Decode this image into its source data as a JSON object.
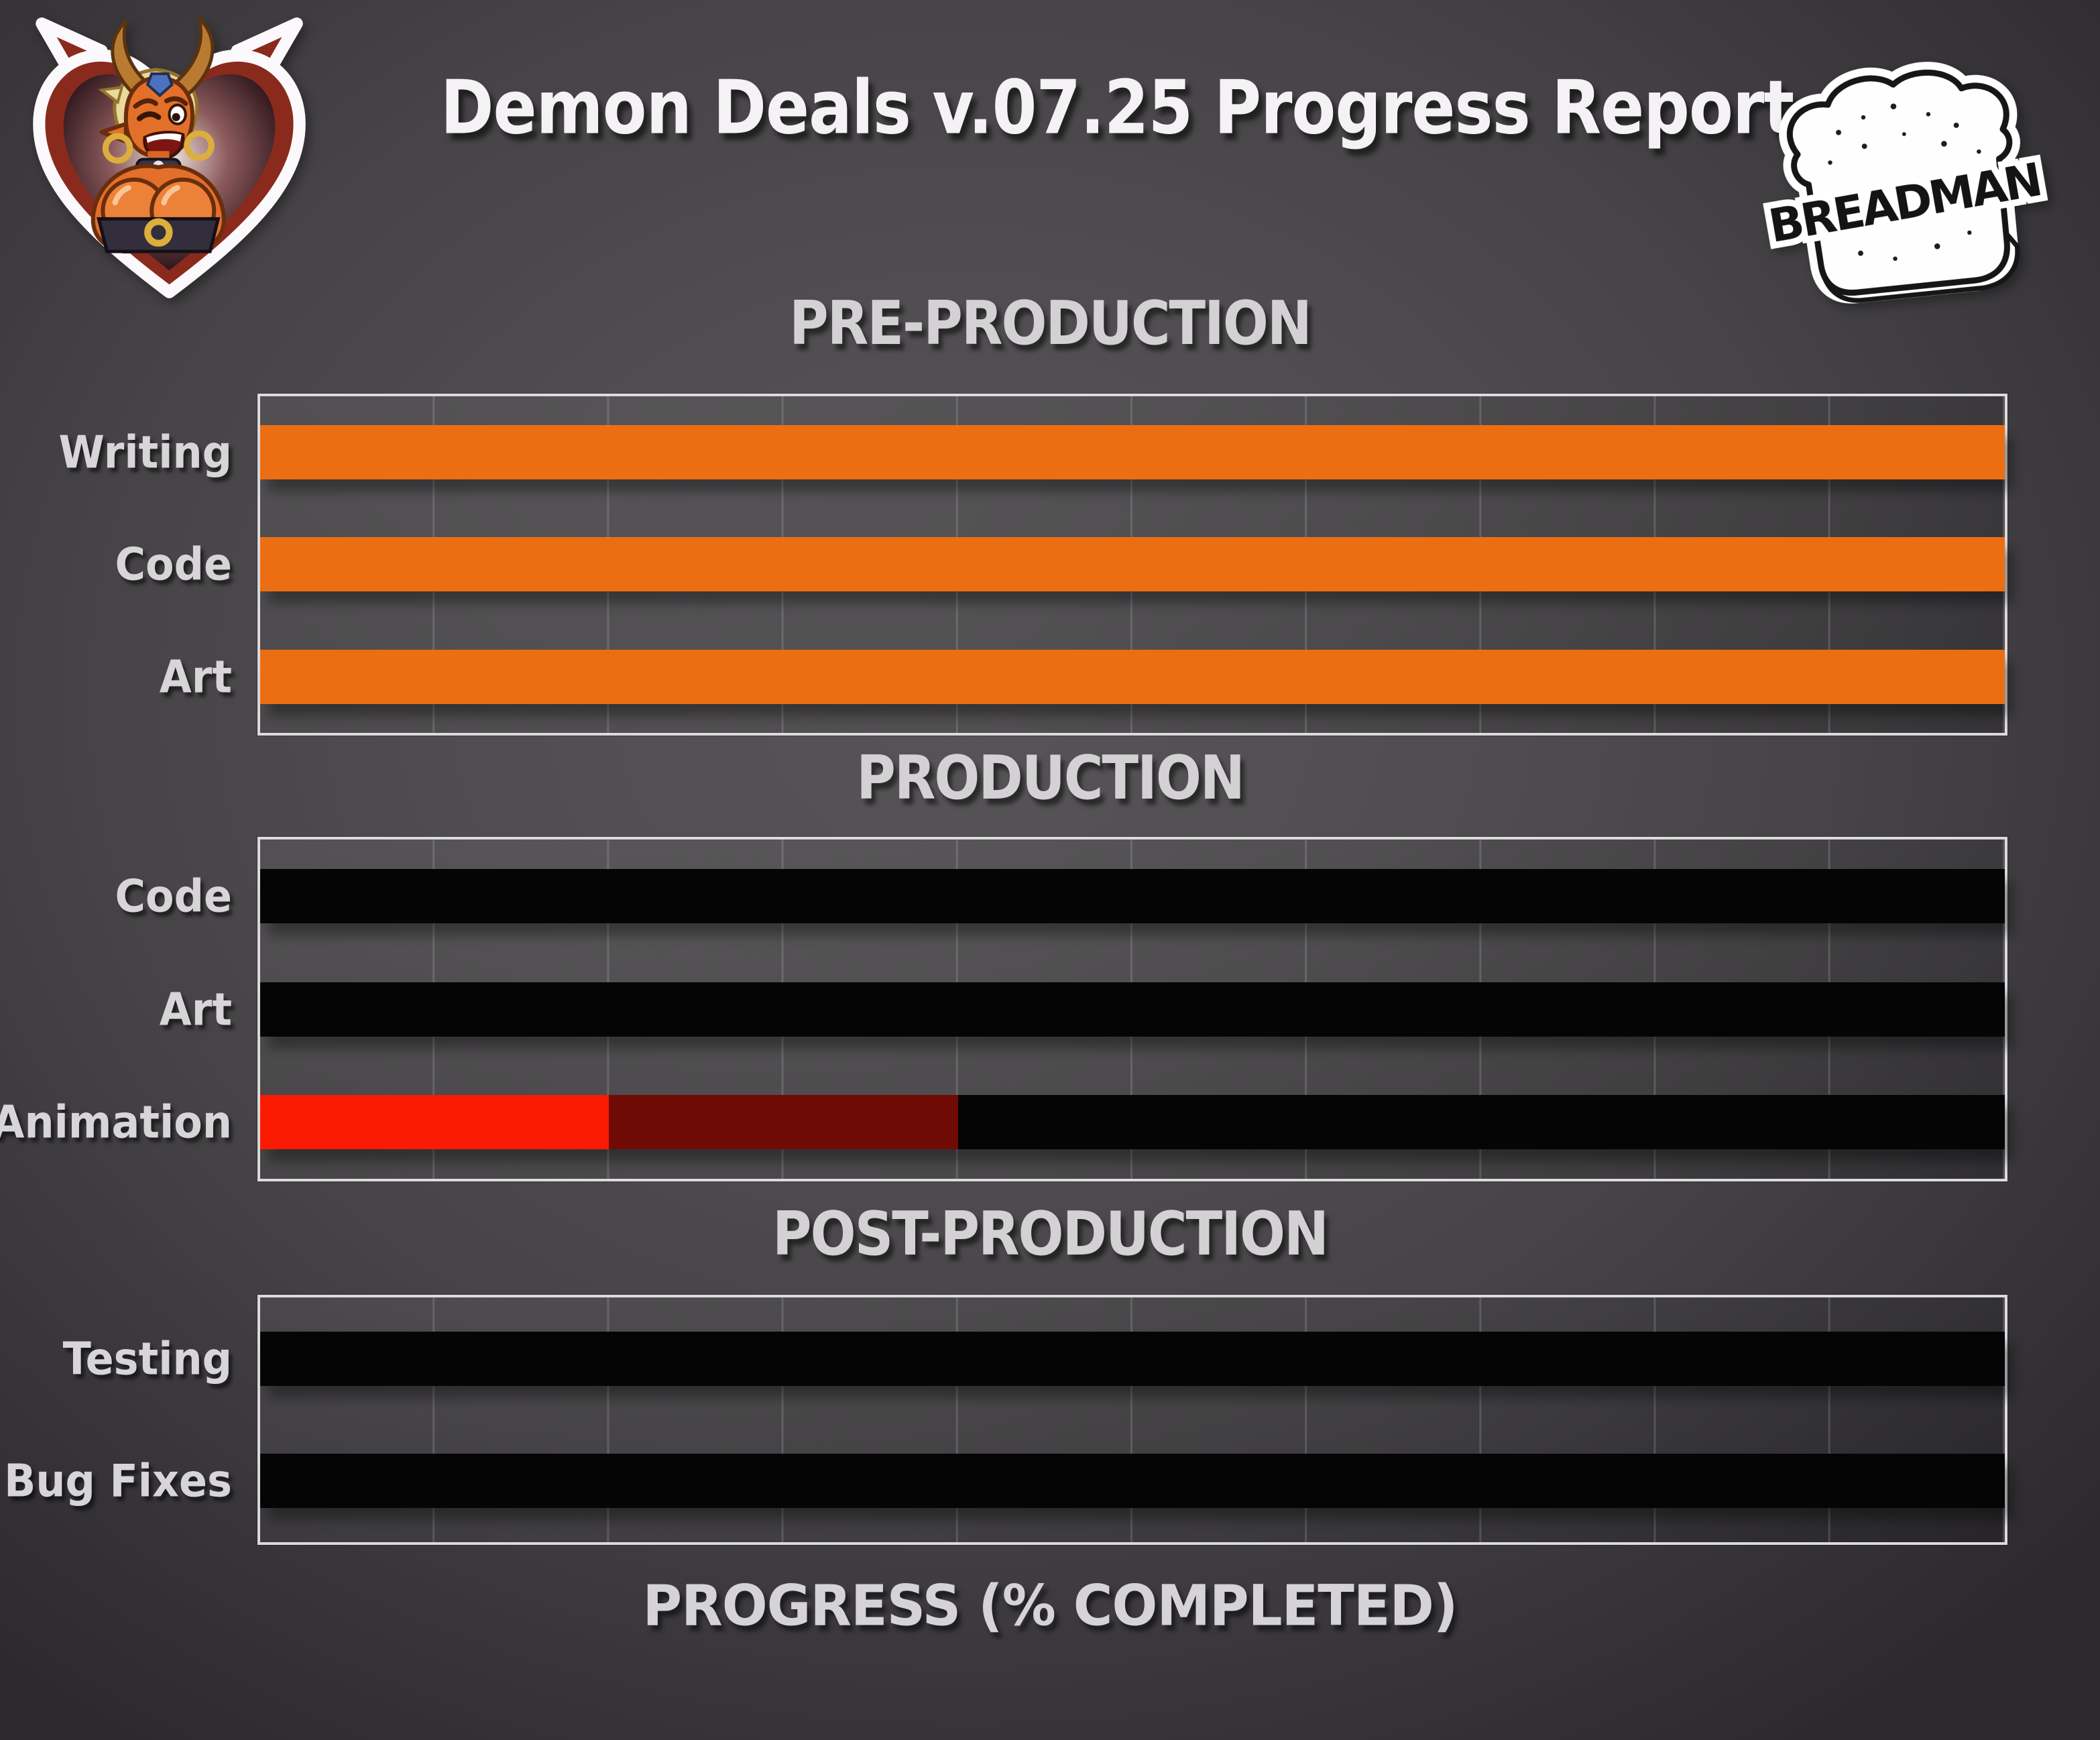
{
  "header": {
    "title": "Demon Deals v.07.25 Progress Report"
  },
  "logos": {
    "breadman": "BREADMAN"
  },
  "xlabel": "PROGRESS (% COMPLETED)",
  "colors": {
    "background_center": "#535153",
    "background_edge": "#2C2A2D",
    "plot_border": "#DCDADC",
    "gridline": "#5C5A5C",
    "label_text": "#D7D5D7",
    "title_text": "#F4F2F4",
    "orange_complete": "#EC6E13",
    "red_complete": "#FB1A02",
    "red_in_progress": "#6F0B04",
    "black_not_started": "#050505"
  },
  "chart_data": [
    {
      "type": "bar",
      "orientation": "horizontal",
      "title": "PRE-PRODUCTION",
      "xlim": [
        0,
        100
      ],
      "gridline_step_pct": 10,
      "grid": true,
      "legend": false,
      "rows": [
        {
          "label": "Writing",
          "total_pct_complete": 100,
          "segments": [
            {
              "status": "completed",
              "value": 100,
              "color": "#EC6E13"
            }
          ]
        },
        {
          "label": "Code",
          "total_pct_complete": 100,
          "segments": [
            {
              "status": "completed",
              "value": 100,
              "color": "#EC6E13"
            }
          ]
        },
        {
          "label": "Art",
          "total_pct_complete": 100,
          "segments": [
            {
              "status": "completed",
              "value": 100,
              "color": "#EC6E13"
            }
          ]
        }
      ]
    },
    {
      "type": "bar",
      "orientation": "horizontal",
      "title": "PRODUCTION",
      "xlim": [
        0,
        100
      ],
      "gridline_step_pct": 10,
      "grid": true,
      "legend": false,
      "rows": [
        {
          "label": "Code",
          "total_pct_complete": 0,
          "segments": [
            {
              "status": "not-started",
              "value": 100,
              "color": "#050505"
            }
          ]
        },
        {
          "label": "Art",
          "total_pct_complete": 0,
          "segments": [
            {
              "status": "not-started",
              "value": 100,
              "color": "#050505"
            }
          ]
        },
        {
          "label": "Animation",
          "total_pct_complete": 20,
          "segments": [
            {
              "status": "completed",
              "value": 20,
              "color": "#FB1A02"
            },
            {
              "status": "in-progress",
              "value": 20,
              "color": "#6F0B04"
            },
            {
              "status": "not-started",
              "value": 60,
              "color": "#050505"
            }
          ]
        }
      ]
    },
    {
      "type": "bar",
      "orientation": "horizontal",
      "title": "POST-PRODUCTION",
      "xlim": [
        0,
        100
      ],
      "gridline_step_pct": 10,
      "grid": true,
      "legend": false,
      "rows": [
        {
          "label": "Testing",
          "total_pct_complete": 0,
          "segments": [
            {
              "status": "not-started",
              "value": 100,
              "color": "#050505"
            }
          ]
        },
        {
          "label": "Bug Fixes",
          "total_pct_complete": 0,
          "segments": [
            {
              "status": "not-started",
              "value": 100,
              "color": "#050505"
            }
          ]
        }
      ]
    }
  ]
}
